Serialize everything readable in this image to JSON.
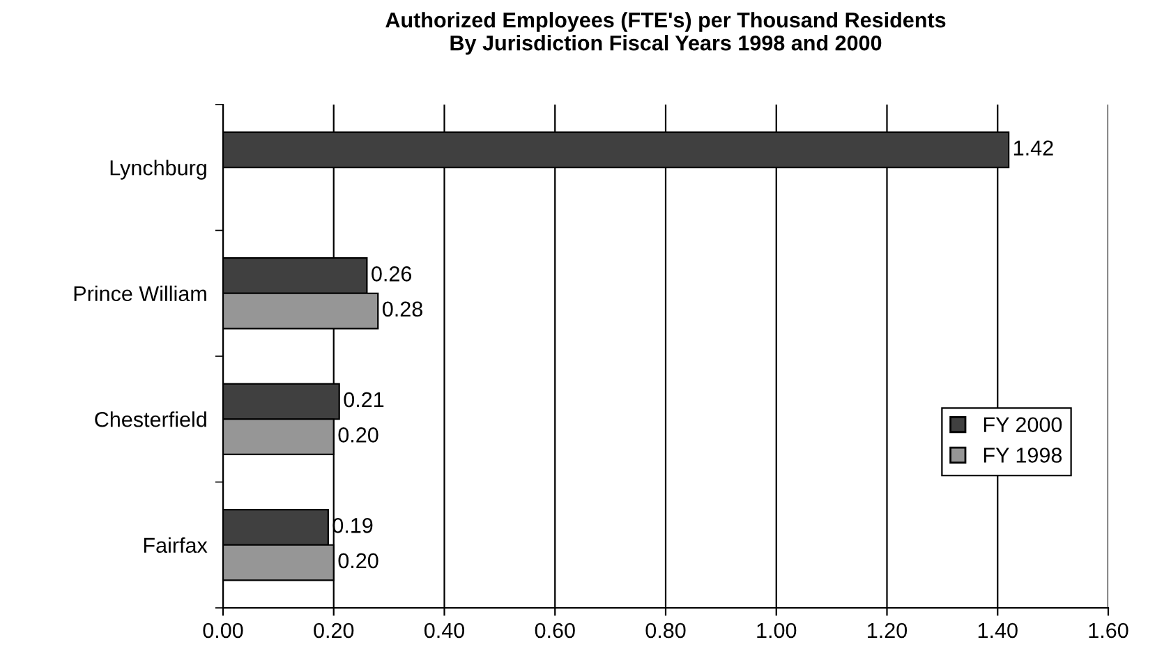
{
  "chart_data": {
    "type": "bar",
    "orientation": "horizontal",
    "title": "Authorized Employees (FTE's) per Thousand Residents\nBy Jurisdiction Fiscal Years 1998 and 2000",
    "categories": [
      "Lynchburg",
      "Prince William",
      "Chesterfield",
      "Fairfax"
    ],
    "series": [
      {
        "name": "FY 2000",
        "color": "#404040",
        "values": [
          1.42,
          0.26,
          0.21,
          0.19
        ],
        "value_labels": [
          "1.42",
          "0.26",
          "0.21",
          "0.19"
        ]
      },
      {
        "name": "FY 1998",
        "color": "#969696",
        "values": [
          null,
          0.28,
          0.2,
          0.2
        ],
        "value_labels": [
          null,
          "0.28",
          "0.20",
          "0.20"
        ]
      }
    ],
    "xlim": [
      0,
      1.6
    ],
    "xticks": [
      {
        "value": 0,
        "label": "0.00"
      },
      {
        "value": 0.2,
        "label": "0.20"
      },
      {
        "value": 0.4,
        "label": "0.40"
      },
      {
        "value": 0.6,
        "label": "0.60"
      },
      {
        "value": 0.8,
        "label": "0.80"
      },
      {
        "value": 1.0,
        "label": "1.00"
      },
      {
        "value": 1.2,
        "label": "1.20"
      },
      {
        "value": 1.4,
        "label": "1.40"
      },
      {
        "value": 1.6,
        "label": "1.60"
      }
    ],
    "grid": "x",
    "legend": "right"
  }
}
